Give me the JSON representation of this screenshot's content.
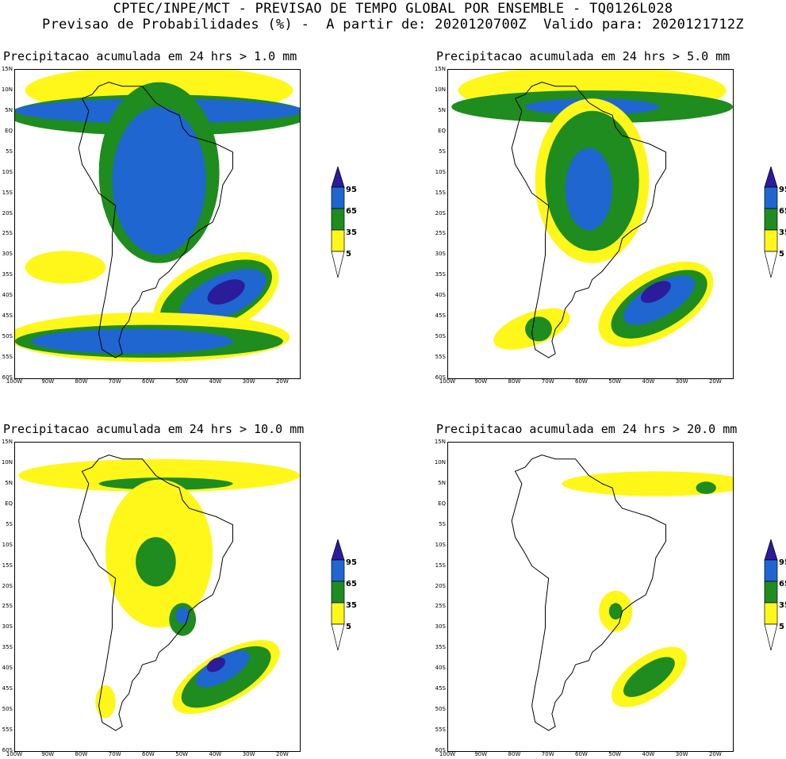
{
  "header": {
    "line1": "CPTEC/INPE/MCT - PREVISAO DE TEMPO GLOBAL POR ENSEMBLE - TQ0126L028",
    "line2": "Previsao de Probabilidades (%) -  A partir de: 2020120700Z  Valido para: 2020121712Z"
  },
  "panels": [
    {
      "title": "Precipitacao acumulada em 24 hrs > 1.0 mm"
    },
    {
      "title": "Precipitacao acumulada em 24 hrs > 5.0 mm"
    },
    {
      "title": "Precipitacao acumulada em 24 hrs > 10.0 mm"
    },
    {
      "title": "Precipitacao acumulada em 24 hrs > 20.0 mm"
    }
  ],
  "axes": {
    "lat_labels": [
      "15N",
      "10N",
      "5N",
      "EQ",
      "5S",
      "10S",
      "15S",
      "20S",
      "25S",
      "30S",
      "35S",
      "40S",
      "45S",
      "50S",
      "55S",
      "60S"
    ],
    "lon_labels": [
      "100W",
      "90W",
      "80W",
      "70W",
      "60W",
      "50W",
      "40W",
      "30W",
      "20W"
    ]
  },
  "colorbar": {
    "levels": [
      "95",
      "65",
      "35",
      "5"
    ],
    "colors": {
      "c95": "#2b1c9c",
      "c65": "#1f66d1",
      "c35": "#1e8c1e",
      "c5": "#fff71a"
    }
  }
}
